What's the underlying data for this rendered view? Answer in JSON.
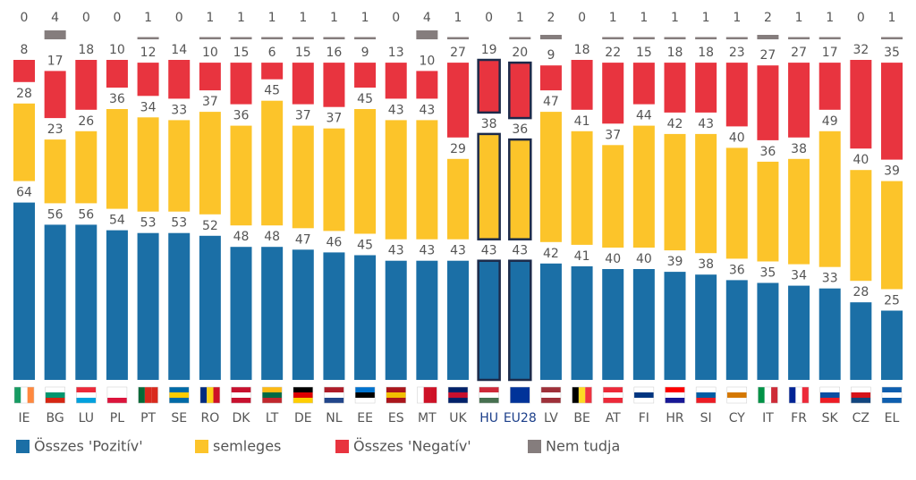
{
  "chart_data": {
    "type": "bar",
    "stacked": true,
    "categories": [
      "IE",
      "BG",
      "LU",
      "PL",
      "PT",
      "SE",
      "RO",
      "DK",
      "LT",
      "DE",
      "NL",
      "EE",
      "ES",
      "MT",
      "UK",
      "HU",
      "EU28",
      "LV",
      "BE",
      "AT",
      "FI",
      "HR",
      "SI",
      "CY",
      "IT",
      "FR",
      "SK",
      "CZ",
      "EL"
    ],
    "highlight": [
      "HU",
      "EU28"
    ],
    "series": [
      {
        "name": "Összes 'Pozitív'",
        "color": "#1b6fa6",
        "values": [
          64,
          56,
          56,
          54,
          53,
          53,
          52,
          48,
          48,
          47,
          46,
          45,
          43,
          43,
          43,
          43,
          43,
          42,
          41,
          40,
          40,
          39,
          38,
          36,
          35,
          34,
          33,
          28,
          25
        ]
      },
      {
        "name": "semleges",
        "color": "#fcc42a",
        "values": [
          28,
          23,
          26,
          36,
          34,
          33,
          37,
          36,
          45,
          37,
          37,
          45,
          43,
          43,
          29,
          38,
          36,
          47,
          41,
          37,
          44,
          42,
          43,
          40,
          36,
          38,
          49,
          40,
          39
        ]
      },
      {
        "name": "Összes 'Negatív'",
        "color": "#e8343f",
        "values": [
          8,
          17,
          18,
          10,
          12,
          14,
          10,
          15,
          6,
          15,
          16,
          9,
          13,
          10,
          27,
          19,
          20,
          9,
          18,
          22,
          15,
          18,
          18,
          23,
          27,
          27,
          17,
          32,
          35
        ]
      },
      {
        "name": "Nem tudja",
        "color": "#857d7d",
        "values": [
          0,
          4,
          0,
          0,
          1,
          0,
          1,
          1,
          1,
          1,
          1,
          1,
          0,
          4,
          1,
          0,
          1,
          2,
          0,
          1,
          1,
          1,
          1,
          1,
          2,
          1,
          1,
          0,
          1
        ]
      }
    ]
  }
}
